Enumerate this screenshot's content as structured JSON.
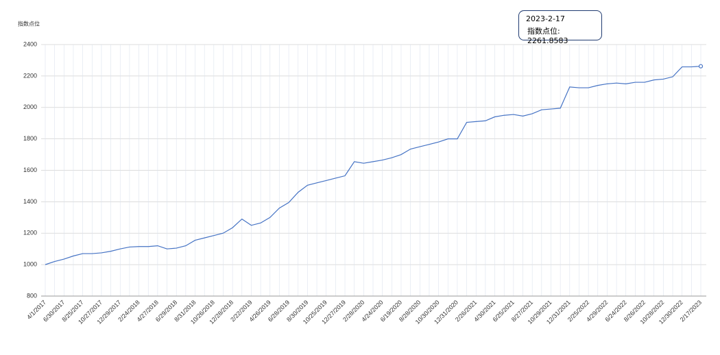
{
  "chart_data": {
    "type": "line",
    "y_label": "指数点位",
    "categories": [
      "4/1/2017",
      null,
      "6/30/2017",
      null,
      "8/25/2017",
      null,
      "10/27/2017",
      null,
      "12/29/2017",
      null,
      "2/24/2018",
      null,
      "4/27/2018",
      null,
      "6/29/2018",
      null,
      "8/31/2018",
      null,
      "10/26/2018",
      null,
      "12/28/2018",
      null,
      "2/22/2019",
      null,
      "4/26/2019",
      null,
      "6/28/2019",
      null,
      "8/30/2019",
      null,
      "10/25/2019",
      null,
      "12/27/2019",
      null,
      "2/28/2020",
      null,
      "4/24/2020",
      null,
      "6/19/2020",
      null,
      "8/28/2020",
      null,
      "10/30/2020",
      null,
      "12/31/2020",
      null,
      "2/26/2021",
      null,
      "4/30/2021",
      null,
      "6/25/2021",
      null,
      "8/27/2021",
      null,
      "10/29/2021",
      null,
      "12/31/2021",
      null,
      "2/25/2022",
      null,
      "4/29/2022",
      null,
      "6/24/2022",
      null,
      "8/26/2022",
      null,
      "10/28/2022",
      null,
      "12/30/2022",
      null,
      "2/17/2023"
    ],
    "series": [
      {
        "name": "指数点位",
        "color": "#4472c4",
        "values": [
          1000,
          1020,
          1035,
          1055,
          1070,
          1070,
          1075,
          1085,
          1100,
          1112,
          1115,
          1115,
          1120,
          1100,
          1105,
          1120,
          1155,
          1170,
          1185,
          1200,
          1235,
          1290,
          1250,
          1265,
          1300,
          1360,
          1395,
          1460,
          1505,
          1520,
          1535,
          1550,
          1565,
          1655,
          1645,
          1655,
          1665,
          1680,
          1700,
          1735,
          1750,
          1765,
          1780,
          1800,
          1800,
          1905,
          1910,
          1915,
          1940,
          1950,
          1955,
          1945,
          1960,
          1985,
          1990,
          1995,
          2130,
          2125,
          2125,
          2140,
          2150,
          2155,
          2150,
          2160,
          2160,
          2175,
          2180,
          2195,
          2258,
          2258,
          2261.8583
        ]
      }
    ],
    "ylim": [
      800,
      2400
    ],
    "yticks": [
      800,
      1000,
      1200,
      1400,
      1600,
      1800,
      2000,
      2200,
      2400
    ],
    "grid": true,
    "tooltip": {
      "title": "2023-2-17",
      "text": "指数点位: 2261.8583"
    }
  }
}
